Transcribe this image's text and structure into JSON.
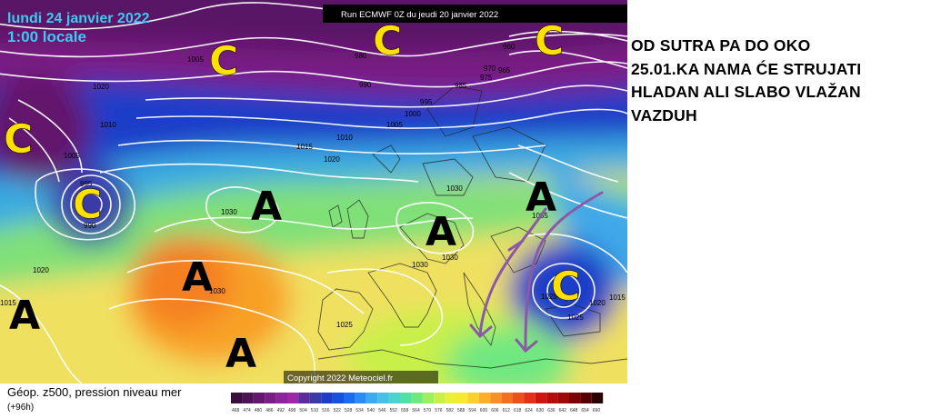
{
  "map": {
    "date_line": "lundi 24 janvier 2022",
    "time_line": "1:00 locale",
    "run_label": "Run ECMWF 0Z du jeudi 20 janvier 2022",
    "copyright": "Copyright 2022 Meteociel.fr",
    "param_label": "Géop. z500, pression niveau mer",
    "lead_label": "(+96h)",
    "pressure_centers": [
      {
        "type": "C",
        "role": "low"
      },
      {
        "type": "C",
        "role": "low"
      },
      {
        "type": "C",
        "role": "low"
      },
      {
        "type": "C",
        "role": "low"
      },
      {
        "type": "C",
        "role": "low"
      },
      {
        "type": "C",
        "role": "low"
      },
      {
        "type": "A",
        "role": "high"
      },
      {
        "type": "A",
        "role": "high"
      },
      {
        "type": "A",
        "role": "high"
      },
      {
        "type": "A",
        "role": "high"
      },
      {
        "type": "A",
        "role": "high"
      },
      {
        "type": "A",
        "role": "high"
      }
    ],
    "isobar_labels": [
      "1005",
      "1020",
      "1010",
      "1005",
      "995",
      "990",
      "1015",
      "1010",
      "1020",
      "980",
      "990",
      "985",
      "995",
      "1000",
      "1005",
      "960",
      "970",
      "975",
      "965",
      "1030",
      "1030",
      "1030",
      "1030",
      "1030",
      "1025",
      "1020",
      "1025",
      "1035",
      "1015",
      "1020",
      "1015",
      "1025"
    ],
    "colorbar_ticks": [
      "468",
      "474",
      "480",
      "486",
      "492",
      "498",
      "504",
      "510",
      "516",
      "522",
      "528",
      "534",
      "540",
      "546",
      "552",
      "558",
      "564",
      "570",
      "576",
      "582",
      "588",
      "594",
      "600",
      "606",
      "612",
      "618",
      "624",
      "630",
      "636",
      "642",
      "648",
      "654",
      "660"
    ],
    "colorbar_colors": [
      "#3a0d3f",
      "#4e1256",
      "#62186c",
      "#7a1e86",
      "#8e249c",
      "#9c28a8",
      "#5a2c9c",
      "#3a3aa8",
      "#1e3cc8",
      "#1850e0",
      "#1c6cf0",
      "#2a8cf4",
      "#3caaf0",
      "#46c0e4",
      "#4ad4cc",
      "#50e0a8",
      "#70e880",
      "#9cf060",
      "#c8f048",
      "#eaf038",
      "#f8e830",
      "#fcd02c",
      "#fcb028",
      "#f89024",
      "#f47020",
      "#ec501c",
      "#e43018",
      "#d01414",
      "#b80c0c",
      "#a00808",
      "#7c0404",
      "#540202",
      "#2a0000"
    ],
    "colors": {
      "arrow": "#8a5aa8",
      "letters_low": "#ffe000",
      "letters_high": "#000000",
      "isobar": "#ffffff"
    }
  },
  "caption": {
    "lines": [
      "OD SUTRA PA DO OKO",
      "25.01.KA NAMA ĆE STRUJATI",
      "HLADAN ALI SLABO VLAŽAN",
      "VAZDUH"
    ]
  }
}
